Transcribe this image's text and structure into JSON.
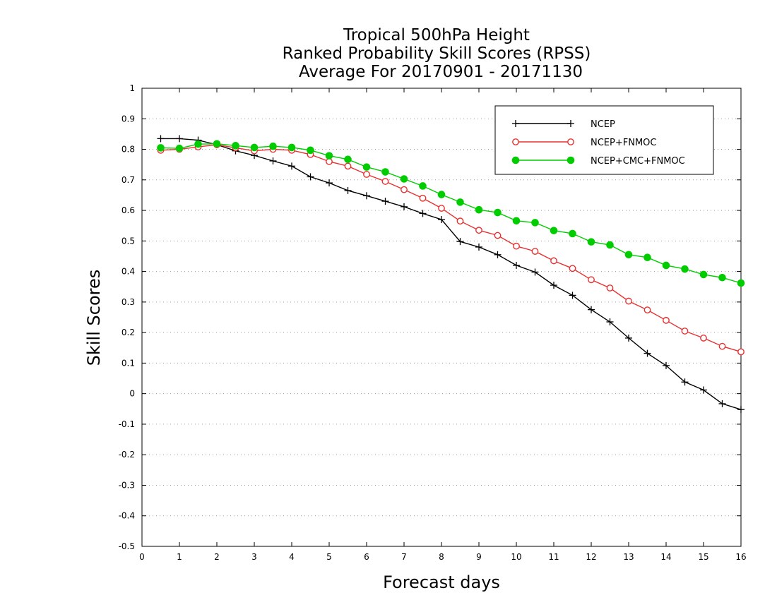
{
  "chart_data": {
    "type": "line",
    "title": [
      "Tropical 500hPa Height",
      "Ranked Probability Skill Scores (RPSS)",
      "Average For 20170901 - 20171130"
    ],
    "xlabel": "Forecast days",
    "ylabel": "Skill Scores",
    "xlim": [
      0,
      16
    ],
    "ylim": [
      -0.5,
      1
    ],
    "x_ticks": [
      0,
      1,
      2,
      3,
      4,
      5,
      6,
      7,
      8,
      9,
      10,
      11,
      12,
      13,
      14,
      15,
      16
    ],
    "y_ticks": [
      -0.5,
      -0.4,
      -0.3,
      -0.2,
      -0.1,
      0,
      0.1,
      0.2,
      0.3,
      0.4,
      0.5,
      0.6,
      0.7,
      0.8,
      0.9,
      1
    ],
    "y_tick_labels": [
      "-0.5",
      "-0.4",
      "-0.3",
      "-0.2",
      "-0.1",
      "0",
      "0.1",
      "0.2",
      "0.3",
      "0.4",
      "0.5",
      "0.6",
      "0.7",
      "0.8",
      "0.9",
      "1"
    ],
    "grid": "horizontal dotted",
    "legend_position": "top-right",
    "x": [
      0.5,
      1,
      1.5,
      2,
      2.5,
      3,
      3.5,
      4,
      4.5,
      5,
      5.5,
      6,
      6.5,
      7,
      7.5,
      8,
      8.5,
      9,
      9.5,
      10,
      10.5,
      11,
      11.5,
      12,
      12.5,
      13,
      13.5,
      14,
      14.5,
      15,
      15.5,
      16
    ],
    "series": [
      {
        "name": "NCEP",
        "color": "#000000",
        "marker": "plus",
        "values": [
          0.835,
          0.835,
          0.83,
          0.815,
          0.795,
          0.78,
          0.762,
          0.745,
          0.71,
          0.69,
          0.665,
          0.648,
          0.63,
          0.612,
          0.59,
          0.57,
          0.498,
          0.48,
          0.455,
          0.42,
          0.398,
          0.355,
          0.322,
          0.275,
          0.235,
          0.182,
          0.132,
          0.092,
          0.038,
          0.012,
          -0.033,
          -0.052
        ]
      },
      {
        "name": "NCEP+FNMOC",
        "color": "#e83030",
        "marker": "open-circle",
        "values": [
          0.797,
          0.8,
          0.808,
          0.815,
          0.805,
          0.795,
          0.8,
          0.797,
          0.783,
          0.76,
          0.745,
          0.718,
          0.695,
          0.668,
          0.64,
          0.607,
          0.565,
          0.535,
          0.518,
          0.483,
          0.466,
          0.435,
          0.41,
          0.373,
          0.346,
          0.303,
          0.274,
          0.24,
          0.205,
          0.182,
          0.155,
          0.137
        ]
      },
      {
        "name": "NCEP+CMC+FNMOC",
        "color": "#00cc00",
        "marker": "filled-circle",
        "values": [
          0.805,
          0.803,
          0.817,
          0.818,
          0.812,
          0.806,
          0.81,
          0.806,
          0.797,
          0.779,
          0.767,
          0.742,
          0.726,
          0.703,
          0.68,
          0.652,
          0.627,
          0.602,
          0.593,
          0.566,
          0.56,
          0.534,
          0.524,
          0.497,
          0.487,
          0.455,
          0.446,
          0.42,
          0.408,
          0.39,
          0.38,
          0.362
        ]
      }
    ]
  }
}
